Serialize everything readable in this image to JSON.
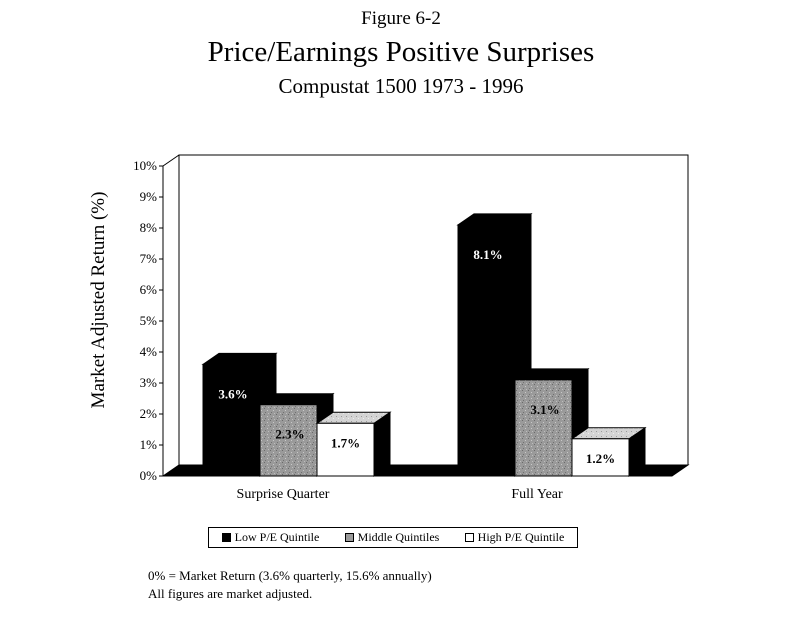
{
  "chart_data": {
    "type": "bar",
    "figure_label": "Figure 6-2",
    "title": "Price/Earnings  Positive Surprises",
    "subtitle": "Compustat 1500 1973 - 1996",
    "ylabel": "Market Adjusted Return (%)",
    "xlabel": "",
    "ylim": [
      0,
      10
    ],
    "yticks": [
      "0%",
      "1%",
      "2%",
      "3%",
      "4%",
      "5%",
      "6%",
      "7%",
      "8%",
      "9%",
      "10%"
    ],
    "categories": [
      "Surprise Quarter",
      "Full Year"
    ],
    "series": [
      {
        "name": "Low P/E Quintile",
        "values": [
          3.6,
          8.1
        ],
        "labels": [
          "3.6%",
          "8.1%"
        ],
        "color": "#000000"
      },
      {
        "name": "Middle Quintiles",
        "values": [
          2.3,
          3.1
        ],
        "labels": [
          "2.3%",
          "3.1%"
        ],
        "color": "#9a9a9a"
      },
      {
        "name": "High P/E Quintile",
        "values": [
          1.7,
          1.2
        ],
        "labels": [
          "1.7%",
          "1.2%"
        ],
        "color": "#ffffff"
      }
    ],
    "legend_position": "bottom",
    "notes": [
      "0% = Market Return (3.6% quarterly, 15.6% annually)",
      "All figures are market adjusted."
    ]
  }
}
